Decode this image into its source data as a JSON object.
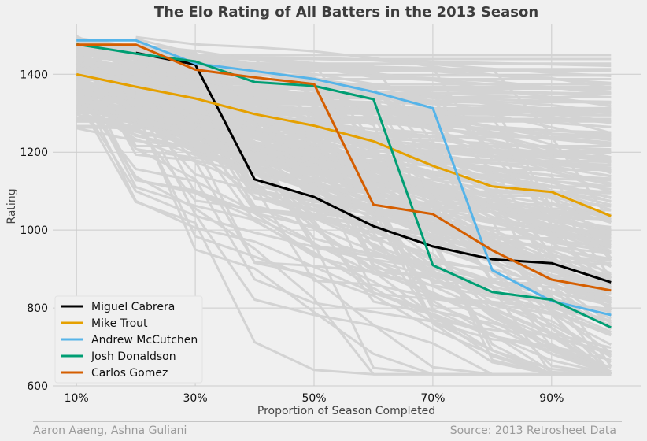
{
  "chart_data": {
    "type": "line",
    "title": "The Elo Rating of All Batters in the 2013 Season",
    "xlabel": "Proportion of Season Completed",
    "ylabel": "Rating",
    "x": [
      0.1,
      0.2,
      0.3,
      0.4,
      0.5,
      0.6,
      0.7,
      0.8,
      0.9,
      1.0
    ],
    "xlim": [
      0.06,
      1.05
    ],
    "ylim": [
      600,
      1530
    ],
    "xticks": [
      0.1,
      0.3,
      0.5,
      0.7,
      0.9
    ],
    "xtick_labels": [
      "10%",
      "30%",
      "50%",
      "70%",
      "90%"
    ],
    "yticks": [
      600,
      800,
      1000,
      1200,
      1400
    ],
    "ytick_labels": [
      "600",
      "800",
      "1000",
      "1200",
      "1400"
    ],
    "grid": true,
    "legend_position": "lower-left",
    "background_series_color": "#d3d3d3",
    "series": [
      {
        "name": "Miguel Cabrera",
        "color": "#000000",
        "x": [
          0.2,
          0.3,
          0.4,
          0.5,
          0.6,
          0.7,
          0.8,
          0.9,
          1.0
        ],
        "values": [
          1455,
          1425,
          1130,
          1085,
          1010,
          958,
          925,
          915,
          866
        ]
      },
      {
        "name": "Mike Trout",
        "color": "#e5a000",
        "x": [
          0.1,
          0.2,
          0.3,
          0.4,
          0.5,
          0.6,
          0.7,
          0.8,
          0.9,
          1.0
        ],
        "values": [
          1400,
          1368,
          1338,
          1298,
          1268,
          1228,
          1165,
          1112,
          1098,
          1036
        ]
      },
      {
        "name": "Andrew McCutchen",
        "color": "#56b4e9",
        "x": [
          0.1,
          0.2,
          0.3,
          0.4,
          0.5,
          0.6,
          0.7,
          0.8,
          0.9,
          1.0
        ],
        "values": [
          1487,
          1487,
          1428,
          1408,
          1388,
          1355,
          1313,
          897,
          818,
          782
        ]
      },
      {
        "name": "Josh Donaldson",
        "color": "#009e73",
        "x": [
          0.1,
          0.2,
          0.3,
          0.4,
          0.5,
          0.6,
          0.7,
          0.8,
          0.9,
          1.0
        ],
        "values": [
          1477,
          1453,
          1433,
          1380,
          1370,
          1336,
          910,
          841,
          821,
          750
        ]
      },
      {
        "name": "Carlos Gomez",
        "color": "#d55e00",
        "x": [
          0.1,
          0.2,
          0.3,
          0.4,
          0.5,
          0.6,
          0.7,
          0.8,
          0.9,
          1.0
        ],
        "values": [
          1476,
          1476,
          1412,
          1392,
          1375,
          1065,
          1041,
          948,
          873,
          845
        ]
      }
    ]
  },
  "footer": {
    "left": "Aaron Aaeng, Ashna Guliani",
    "right": "Source: 2013 Retrosheet Data"
  }
}
